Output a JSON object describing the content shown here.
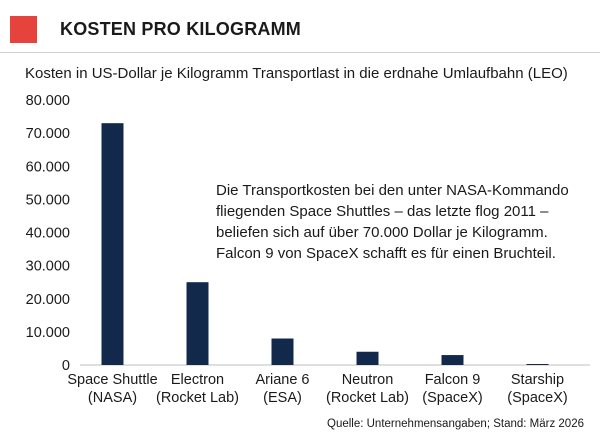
{
  "header": {
    "title": "KOSTEN PRO KILOGRAMM",
    "accent_color": "#e5433c"
  },
  "chart_data": {
    "type": "bar",
    "title": "KOSTEN PRO KILOGRAMM",
    "subtitle": "Kosten in US-Dollar je Kilogramm Transportlast in die erdnahe Umlaufbahn (LEO)",
    "categories": [
      [
        "Space Shuttle",
        "(NASA)"
      ],
      [
        "Electron",
        "(Rocket Lab)"
      ],
      [
        "Ariane 6",
        "(ESA)"
      ],
      [
        "Neutron",
        "(Rocket Lab)"
      ],
      [
        "Falcon 9",
        "(SpaceX)"
      ],
      [
        "Starship",
        "(SpaceX)"
      ]
    ],
    "values": [
      73000,
      25000,
      8000,
      4000,
      3000,
      150
    ],
    "ylim": [
      0,
      80000
    ],
    "yticks": [
      0,
      10000,
      20000,
      30000,
      40000,
      50000,
      60000,
      70000,
      80000
    ],
    "ytick_labels": [
      "0",
      "10.000",
      "20.000",
      "30.000",
      "40.000",
      "50.000",
      "60.000",
      "70.000",
      "80.000"
    ],
    "bar_color": "#13294b",
    "grid": false,
    "annotation": "Die Transportkosten bei den unter NASA-Kommando fliegenden Space Shuttles – das letzte flog 2011 – belief­en sich auf über 70.000 Dollar je Kilogramm. Falcon 9 von SpaceX schafft es für einen Bruchteil."
  },
  "annotation_lines": [
    "Die Transportkosten bei den unter NASA-Kommando",
    "fliegenden Space Shuttles – das letzte flog 2011 –",
    "beliefen sich auf über 70.000 Dollar je Kilogramm.",
    "Falcon 9 von SpaceX schafft es für einen Bruchteil."
  ],
  "source": "Quelle: Unternehmensangaben; Stand: März 2026"
}
